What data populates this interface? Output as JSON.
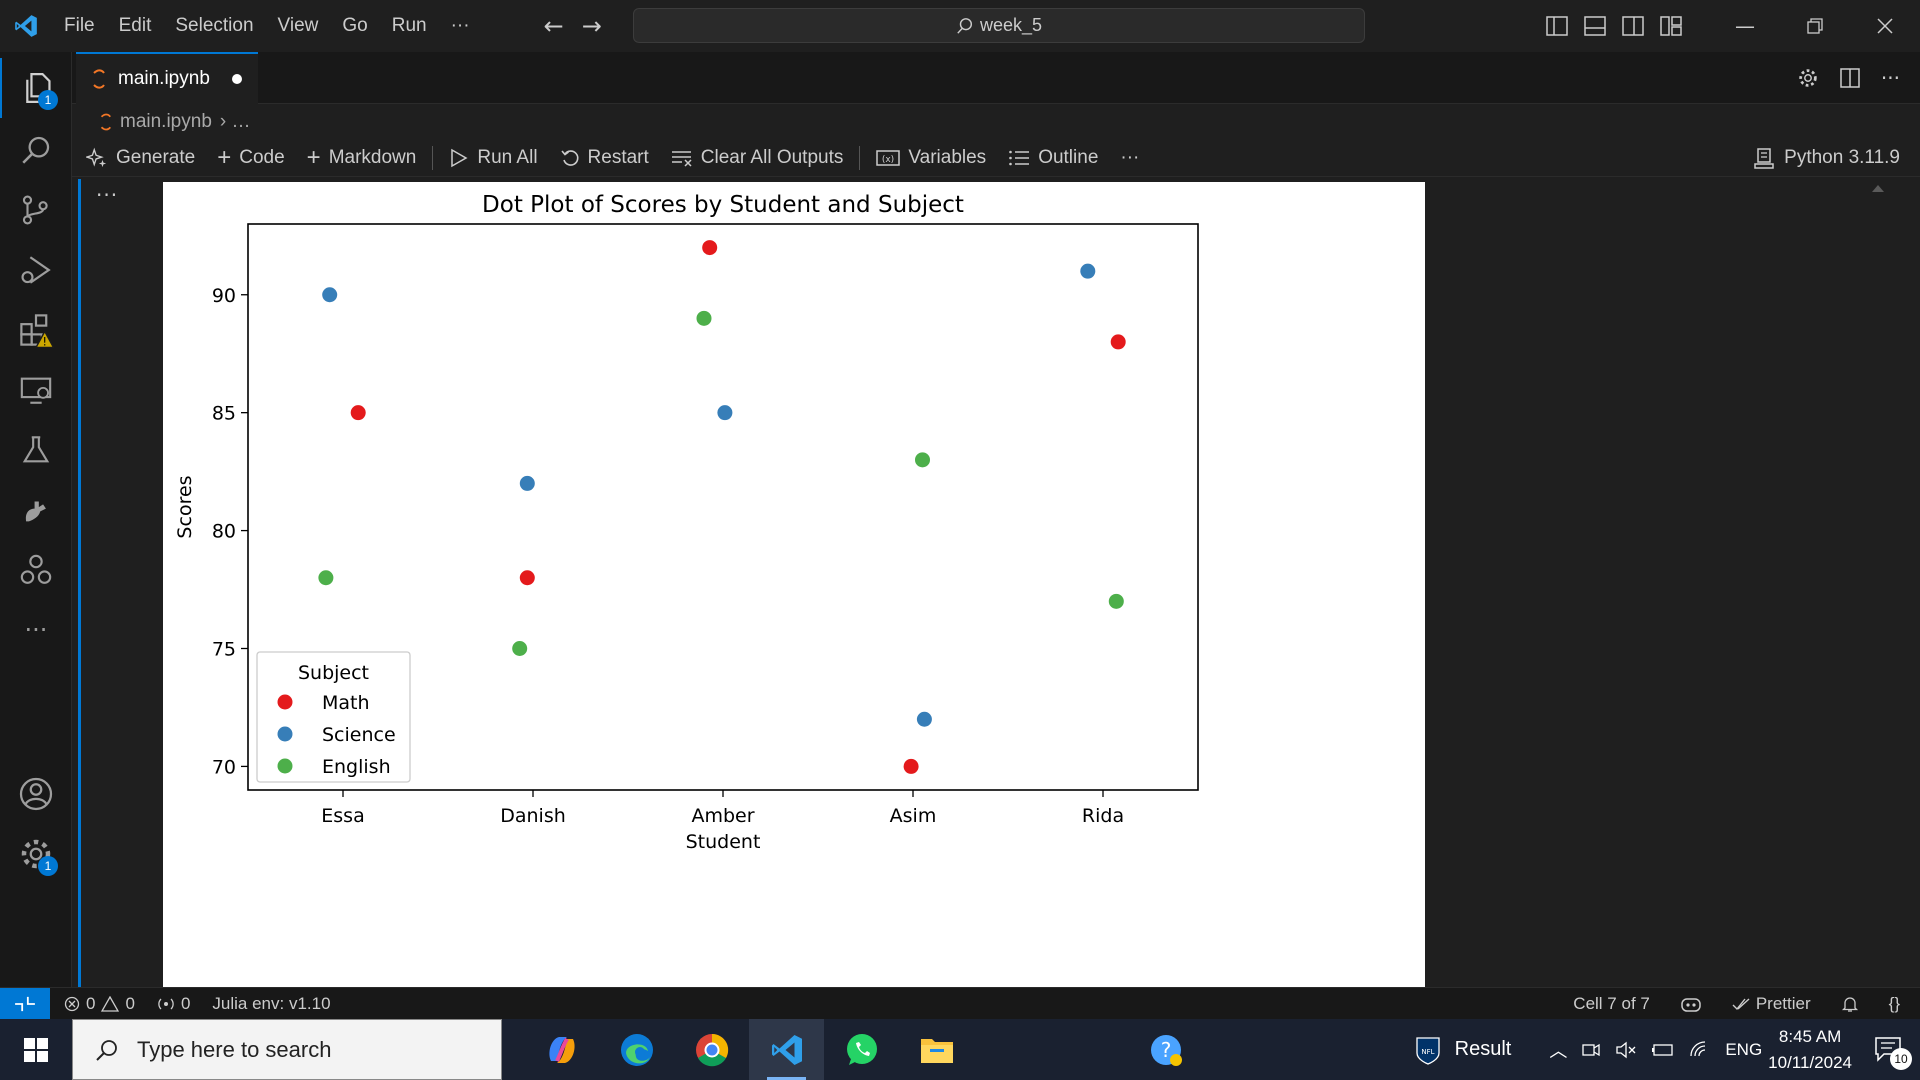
{
  "titlebar": {
    "menus": [
      "File",
      "Edit",
      "Selection",
      "View",
      "Go",
      "Run",
      "···"
    ],
    "search_text": "week_5"
  },
  "activity_badges": {
    "explorer": "1",
    "settings": "1"
  },
  "tab": {
    "label": "main.ipynb"
  },
  "breadcrumb": {
    "file": "main.ipynb",
    "rest": "› …"
  },
  "toolbar": {
    "generate": "Generate",
    "code": "Code",
    "markdown": "Markdown",
    "run_all": "Run All",
    "restart": "Restart",
    "clear_outputs": "Clear All Outputs",
    "variables": "Variables",
    "outline": "Outline",
    "more": "···",
    "kernel": "Python 3.11.9"
  },
  "cell": {
    "more": "···"
  },
  "chart_data": {
    "type": "scatter",
    "title": "Dot Plot of Scores by Student and Subject",
    "xlabel": "Student",
    "ylabel": "Scores",
    "categories": [
      "Essa",
      "Danish",
      "Amber",
      "Asim",
      "Rida"
    ],
    "yticks": [
      70,
      75,
      80,
      85,
      90
    ],
    "ylim": [
      69,
      93
    ],
    "legend_title": "Subject",
    "legend_position": "lower-left",
    "series": [
      {
        "name": "Math",
        "color": "#e41a1c",
        "points": [
          [
            0.08,
            85
          ],
          [
            -0.03,
            78
          ],
          [
            -0.07,
            92
          ],
          [
            -0.01,
            70
          ],
          [
            0.08,
            88
          ]
        ]
      },
      {
        "name": "Science",
        "color": "#377eb8",
        "points": [
          [
            -0.07,
            90
          ],
          [
            -0.03,
            82
          ],
          [
            0.01,
            85
          ],
          [
            0.06,
            72
          ],
          [
            -0.08,
            91
          ]
        ]
      },
      {
        "name": "English",
        "color": "#4daf4a",
        "points": [
          [
            -0.09,
            78
          ],
          [
            -0.07,
            75
          ],
          [
            -0.1,
            89
          ],
          [
            0.05,
            83
          ],
          [
            0.07,
            77
          ]
        ]
      }
    ]
  },
  "status": {
    "errors": "0",
    "warnings": "0",
    "ports": "0",
    "julia": "Julia env: v1.10",
    "cell": "Cell 7 of 7",
    "prettier": "Prettier",
    "braces": "{}"
  },
  "taskbar": {
    "search_placeholder": "Type here to search",
    "result": "Result",
    "lang": "ENG",
    "time": "8:45 AM",
    "date": "10/11/2024",
    "notifications": "10"
  }
}
